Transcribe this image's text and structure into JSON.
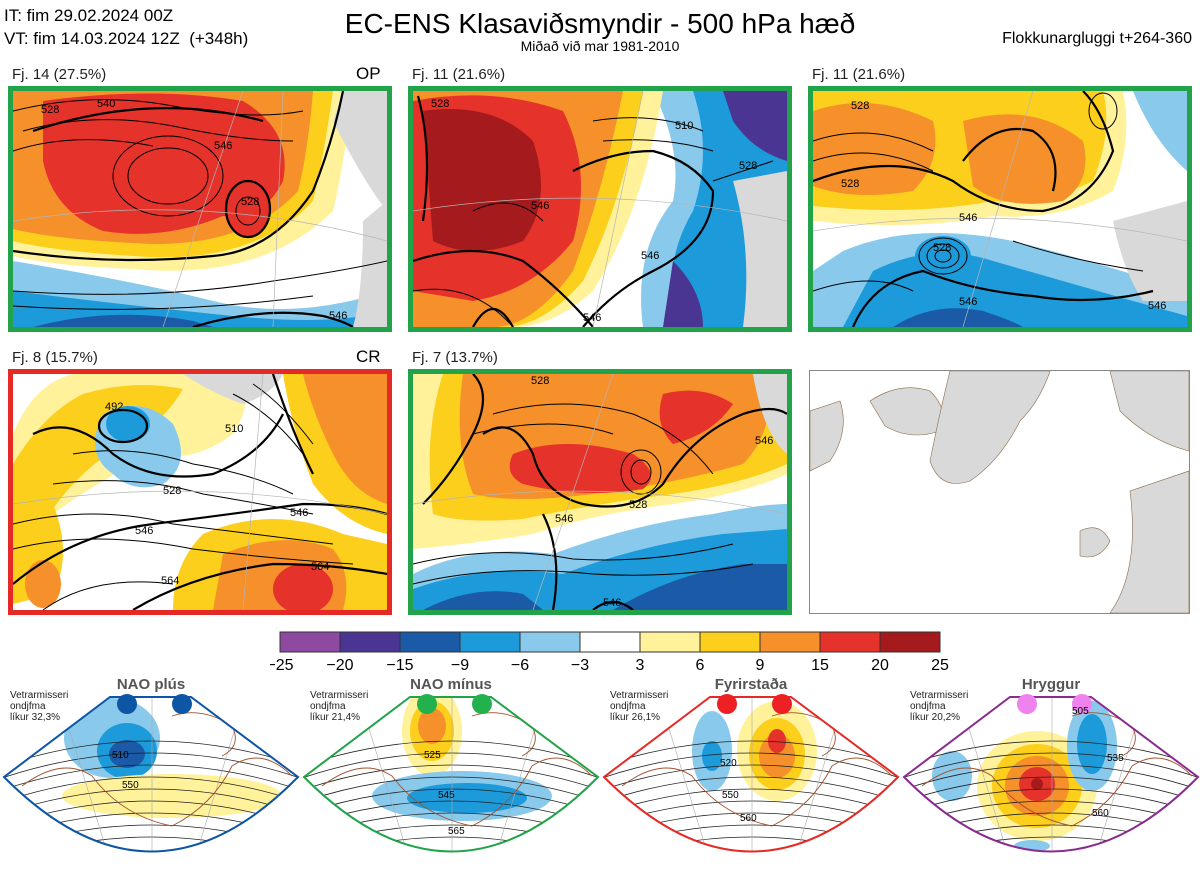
{
  "header": {
    "it_line": "IT: fim 29.02.2024 00Z",
    "vt_line": "VT: fim 14.03.2024 12Z  (+348h)",
    "title": "EC-ENS Klasaviðsmyndir - 500 hPa hæð",
    "subtitle": "Miðað við mar 1981-2010",
    "window": "Flokkunargluggi t+264-360"
  },
  "clusters": [
    {
      "label": "Fj. 14 (27.5%)",
      "tag": "OP",
      "border_color": "#22a34a",
      "contours": [
        "528",
        "540",
        "546",
        "528",
        "546"
      ]
    },
    {
      "label": "Fj. 11 (21.6%)",
      "tag": "",
      "border_color": "#22a34a",
      "contours": [
        "528",
        "510",
        "528",
        "546",
        "546",
        "546"
      ]
    },
    {
      "label": "Fj. 11 (21.6%)",
      "tag": "",
      "border_color": "#22a34a",
      "contours": [
        "528",
        "528",
        "546",
        "528",
        "546",
        "546"
      ]
    },
    {
      "label": "Fj. 8 (15.7%)",
      "tag": "CR",
      "border_color": "#e52a26",
      "contours": [
        "492",
        "510",
        "528",
        "546",
        "546",
        "564",
        "564"
      ]
    },
    {
      "label": "Fj. 7 (13.7%)",
      "tag": "",
      "border_color": "#22a34a",
      "contours": [
        "528",
        "528",
        "546",
        "546",
        "546"
      ]
    }
  ],
  "colorbar": {
    "ticks": [
      "−25",
      "−20",
      "−15",
      "−9",
      "−6",
      "−3",
      "3",
      "6",
      "9",
      "15",
      "20",
      "25"
    ],
    "colors": [
      "#8e4aa0",
      "#4b3593",
      "#1a5aa6",
      "#1d9ad9",
      "#88c9ec",
      "#ffffff",
      "#fff29a",
      "#fccf1d",
      "#f5902a",
      "#e5322b",
      "#a51a1c"
    ]
  },
  "regimes": [
    {
      "name": "NAO plús",
      "info": [
        "Vetrarmisseri",
        "ondjfma",
        "líkur 32,3%"
      ],
      "dot_color": "#0d55a5",
      "border_color": "#0d55a5",
      "contours": [
        "510",
        "550"
      ]
    },
    {
      "name": "NAO mínus",
      "info": [
        "Vetrarmisseri",
        "ondjfma",
        "líkur 21,4%"
      ],
      "dot_color": "#22b14c",
      "border_color": "#22a34a",
      "contours": [
        "525",
        "545",
        "565"
      ]
    },
    {
      "name": "Fyrirstaða",
      "info": [
        "Vetrarmisseri",
        "ondjfma",
        "líkur 26,1%"
      ],
      "dot_color": "#ed2024",
      "border_color": "#e52a26",
      "contours": [
        "520",
        "550",
        "560"
      ]
    },
    {
      "name": "Hryggur",
      "info": [
        "Vetrarmisseri",
        "ondjfma",
        "líkur 20,2%"
      ],
      "dot_color": "#ee82ee",
      "border_color": "#8a2b8f",
      "contours": [
        "505",
        "535",
        "560"
      ]
    }
  ]
}
